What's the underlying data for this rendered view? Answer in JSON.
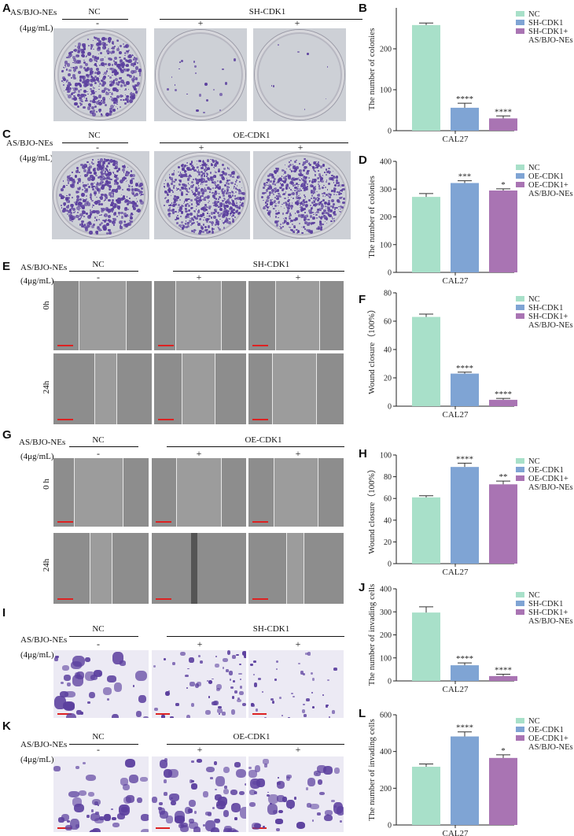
{
  "panel_letters": {
    "A": "A",
    "B": "B",
    "C": "C",
    "D": "D",
    "E": "E",
    "F": "F",
    "G": "G",
    "H": "H",
    "I": "I",
    "J": "J",
    "K": "K",
    "L": "L"
  },
  "treatment_label": "AS/BJO-NEs",
  "dose_label": "(4μg/mL)",
  "group_nc": "NC",
  "group_sh": "SH-CDK1",
  "group_oe": "OE-CDK1",
  "minus": "-",
  "plus": "+",
  "time_0h": "0h",
  "time_0h_spaced": "0 h",
  "time_24h": "24h",
  "colors": {
    "nc": "#a8e0c9",
    "knock": "#7fa4d4",
    "combo": "#a974b3",
    "stain": "#5b3f9e",
    "wound_cells": "#6f6f6f"
  },
  "chart_data": [
    {
      "panel": "B",
      "type": "bar",
      "ylabel": "The number of colonies",
      "xlabel": "CAL27",
      "ylim": [
        0,
        300
      ],
      "yticks": [
        0,
        100,
        200
      ],
      "categories": [
        "NC",
        "SH-CDK1",
        "SH-CDK1+ AS/BJO-NEs"
      ],
      "legend": [
        "NC",
        "SH-CDK1",
        "SH-CDK1+",
        "AS/BJO-NEs"
      ],
      "values": [
        258,
        56,
        30
      ],
      "errors": [
        5,
        11,
        6
      ],
      "significance": [
        "",
        "****",
        "****"
      ]
    },
    {
      "panel": "D",
      "type": "bar",
      "ylabel": "The number of colonies",
      "xlabel": "CAL27",
      "ylim": [
        0,
        400
      ],
      "yticks": [
        0,
        100,
        200,
        300,
        400
      ],
      "categories": [
        "NC",
        "OE-CDK1",
        "OE-CDK1+ AS/BJO-NEs"
      ],
      "legend": [
        "NC",
        "OE-CDK1",
        "OE-CDK1+",
        "AS/BJO-NEs"
      ],
      "values": [
        272,
        322,
        295
      ],
      "errors": [
        12,
        8,
        6
      ],
      "significance": [
        "",
        "***",
        "*"
      ]
    },
    {
      "panel": "F",
      "type": "bar",
      "ylabel": "Wound closure（100%）",
      "xlabel": "CAL27",
      "ylim": [
        0,
        80
      ],
      "yticks": [
        0,
        20,
        40,
        60,
        80
      ],
      "categories": [
        "NC",
        "SH-CDK1",
        "SH-CDK1+ AS/BJO-NEs"
      ],
      "legend": [
        "NC",
        "SH-CDK1",
        "SH-CDK1+",
        "AS/BJO-NEs"
      ],
      "values": [
        63,
        23,
        4.5
      ],
      "errors": [
        2,
        1,
        1
      ],
      "significance": [
        "",
        "****",
        "****"
      ]
    },
    {
      "panel": "H",
      "type": "bar",
      "ylabel": "Wound closure（100%）",
      "xlabel": "CAL27",
      "ylim": [
        0,
        100
      ],
      "yticks": [
        0,
        20,
        40,
        60,
        80,
        100
      ],
      "categories": [
        "NC",
        "OE-CDK1",
        "OE-CDK1+ AS/BJO-NEs"
      ],
      "legend": [
        "NC",
        "OE-CDK1",
        "OE-CDK1+",
        "AS/BJO-NEs"
      ],
      "values": [
        61,
        89,
        73
      ],
      "errors": [
        1.5,
        3.5,
        3
      ],
      "significance": [
        "",
        "****",
        "**"
      ]
    },
    {
      "panel": "J",
      "type": "bar",
      "ylabel": "The number of invading cells",
      "xlabel": "CAL27",
      "ylim": [
        0,
        400
      ],
      "yticks": [
        0,
        100,
        200,
        300,
        400
      ],
      "categories": [
        "NC",
        "SH-CDK1",
        "SH-CDK1+ AS/BJO-NEs"
      ],
      "legend": [
        "NC",
        "SH-CDK1",
        "SH-CDK1+",
        "AS/BJO-NEs"
      ],
      "values": [
        297,
        68,
        21
      ],
      "errors": [
        25,
        10,
        8
      ],
      "significance": [
        "",
        "****",
        "****"
      ]
    },
    {
      "panel": "L",
      "type": "bar",
      "ylabel": "The number of invading cells",
      "xlabel": "CAL27",
      "ylim": [
        0,
        600
      ],
      "yticks": [
        0,
        200,
        400,
        600
      ],
      "categories": [
        "NC",
        "OE-CDK1",
        "OE-CDK1+ AS/BJO-NEs"
      ],
      "legend": [
        "NC",
        "OE-CDK1",
        "OE-CDK1+",
        "AS/BJO-NEs"
      ],
      "values": [
        317,
        482,
        365
      ],
      "errors": [
        15,
        25,
        17
      ],
      "significance": [
        "",
        "****",
        "*"
      ]
    }
  ]
}
